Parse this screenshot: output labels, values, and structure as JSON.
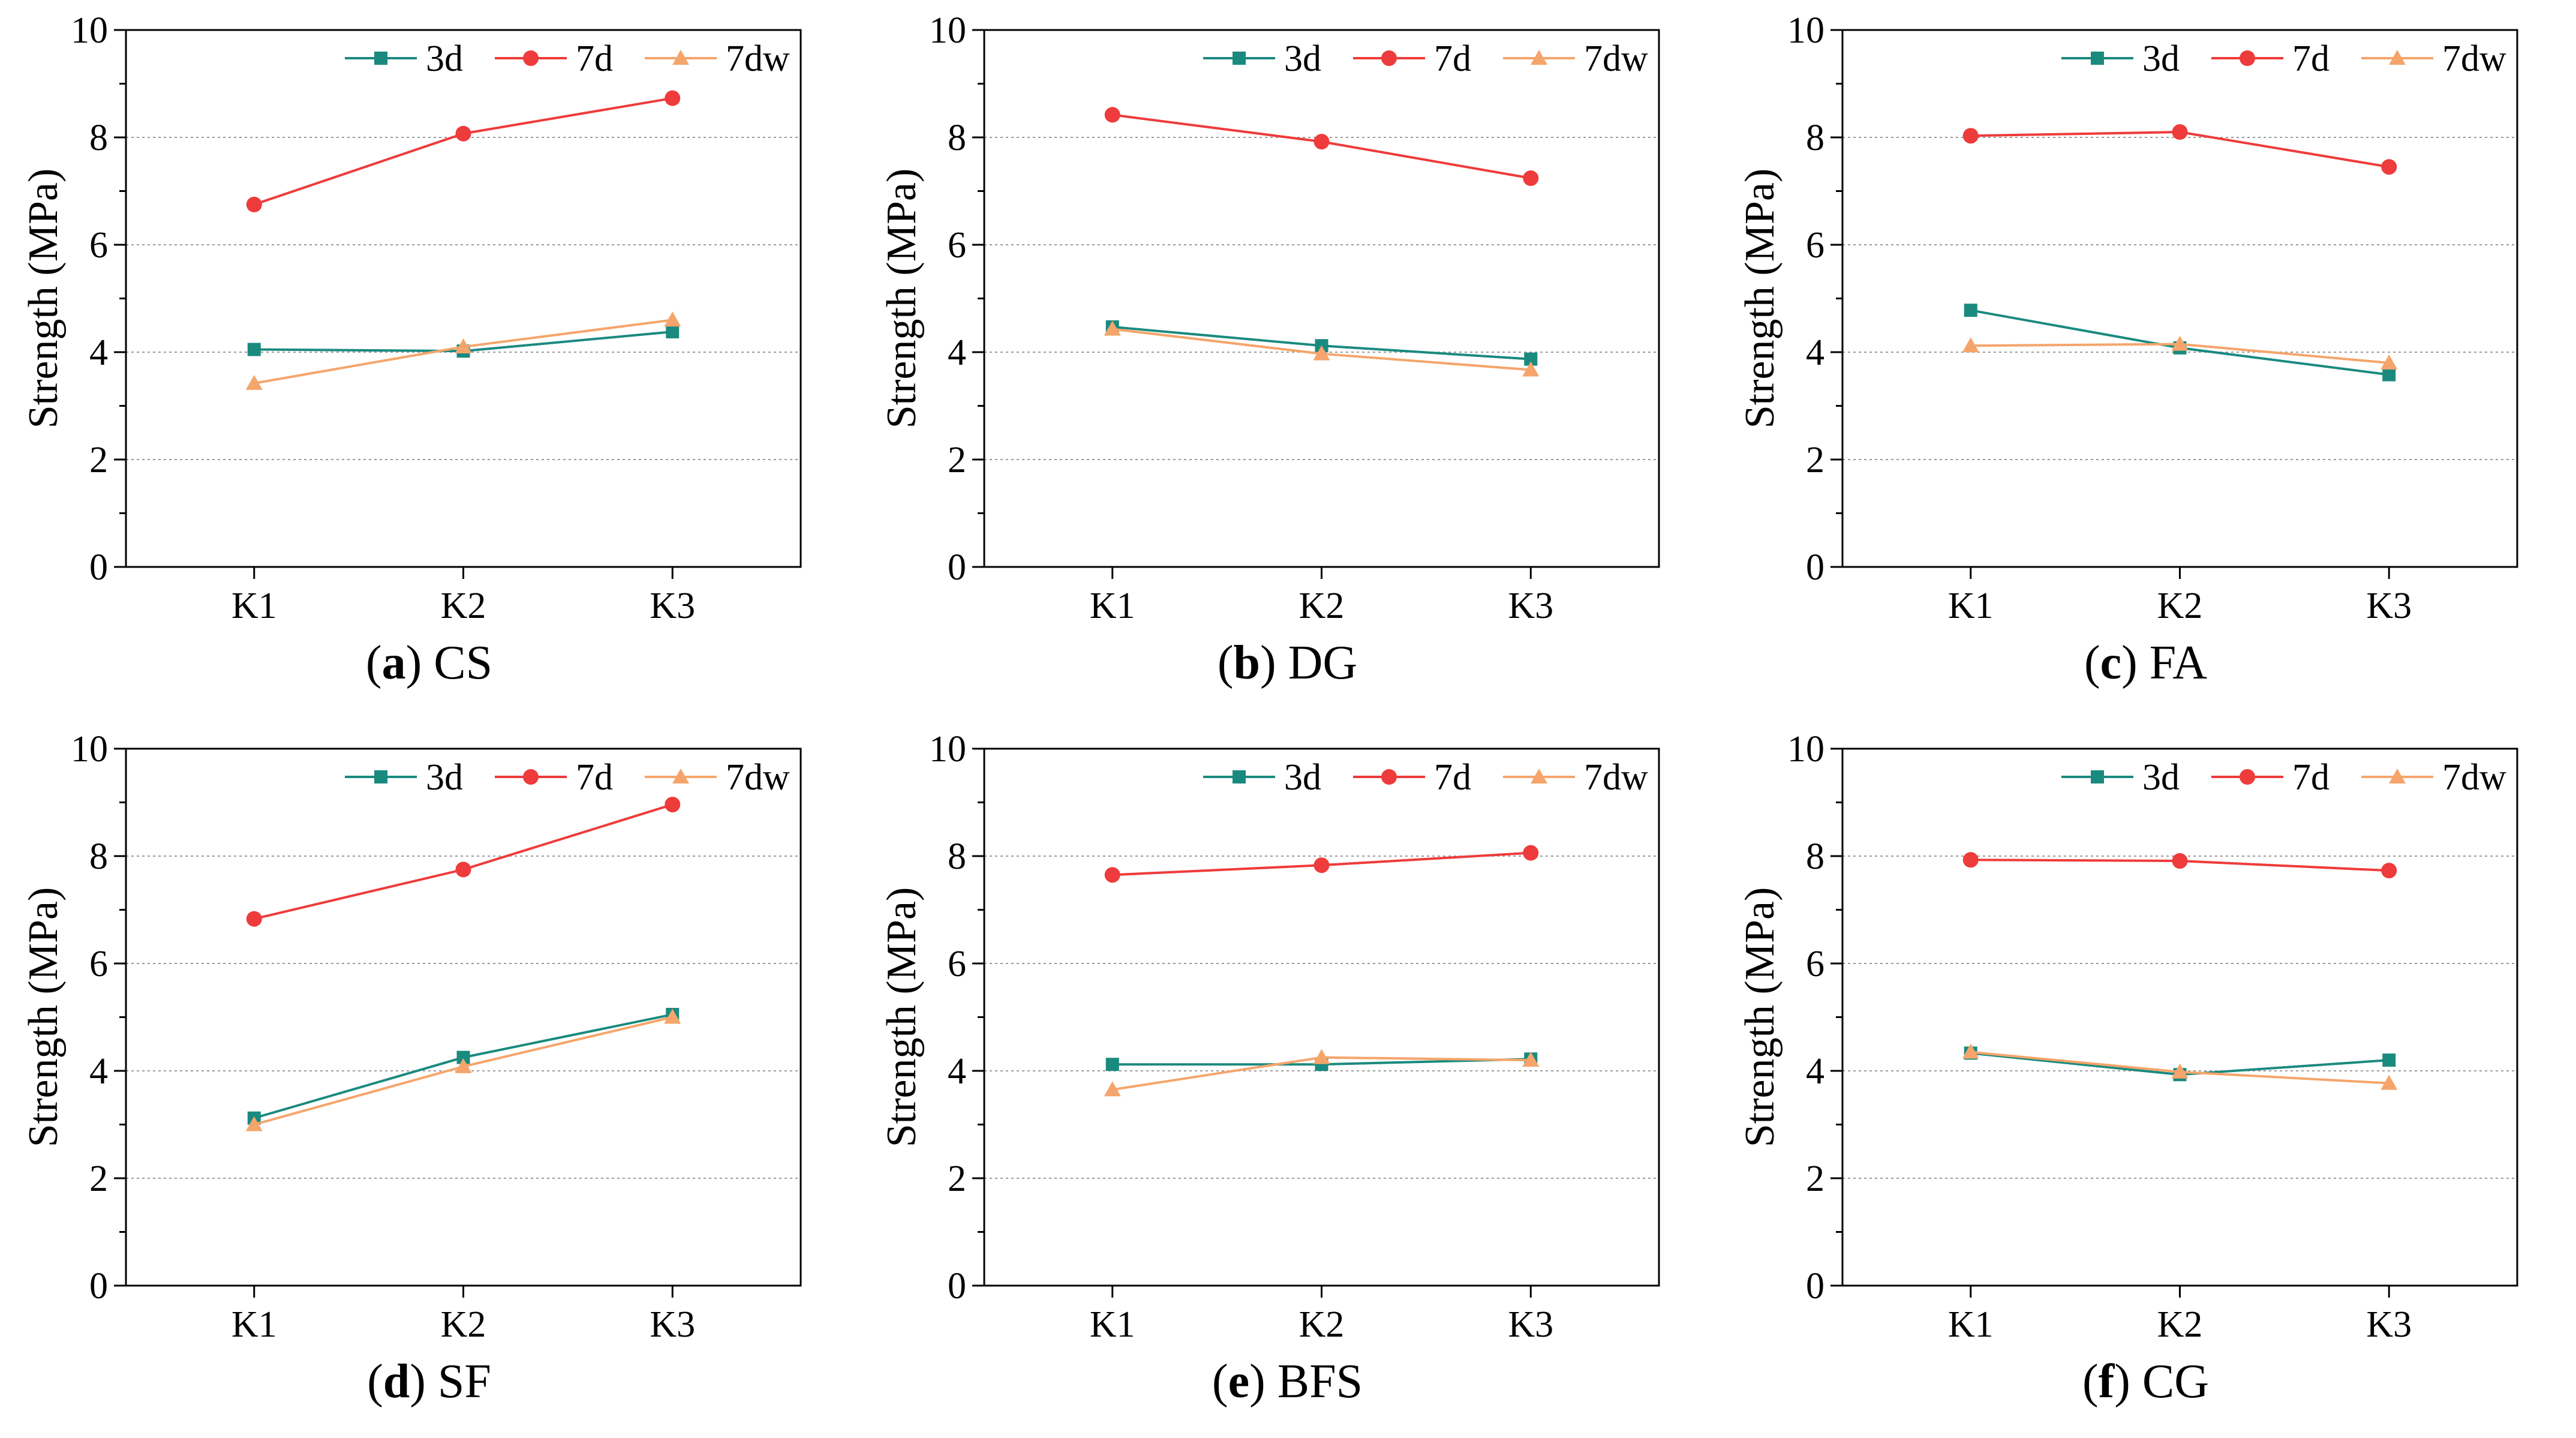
{
  "colors": {
    "3d": "#1a8a7f",
    "7d": "#ee3b3b",
    "7dw": "#f5a56b",
    "grid": "#9a9a9a",
    "axis": "#000000"
  },
  "chart_data": [
    {
      "type": "line",
      "caption_letter": "a",
      "caption_name": "CS",
      "categories": [
        "K1",
        "K2",
        "K3"
      ],
      "ylabel": "Strength (MPa)",
      "xlabel": "",
      "ylim": [
        0,
        10
      ],
      "yticks": [
        "0",
        "2",
        "4",
        "6",
        "8",
        "10"
      ],
      "series": [
        {
          "name": "3d",
          "marker": "square",
          "values": [
            4.05,
            4.02,
            4.38
          ]
        },
        {
          "name": "7d",
          "marker": "circle",
          "values": [
            6.75,
            8.07,
            8.73
          ]
        },
        {
          "name": "7dw",
          "marker": "triangle",
          "values": [
            3.42,
            4.1,
            4.6
          ]
        }
      ]
    },
    {
      "type": "line",
      "caption_letter": "b",
      "caption_name": "DG",
      "categories": [
        "K1",
        "K2",
        "K3"
      ],
      "ylabel": "Strength (MPa)",
      "xlabel": "",
      "ylim": [
        0,
        10
      ],
      "yticks": [
        "0",
        "2",
        "4",
        "6",
        "8",
        "10"
      ],
      "series": [
        {
          "name": "3d",
          "marker": "square",
          "values": [
            4.47,
            4.12,
            3.87
          ]
        },
        {
          "name": "7d",
          "marker": "circle",
          "values": [
            8.42,
            7.92,
            7.24
          ]
        },
        {
          "name": "7dw",
          "marker": "triangle",
          "values": [
            4.43,
            3.97,
            3.67
          ]
        }
      ]
    },
    {
      "type": "line",
      "caption_letter": "c",
      "caption_name": "FA",
      "categories": [
        "K1",
        "K2",
        "K3"
      ],
      "ylabel": "Strength (MPa)",
      "xlabel": "",
      "ylim": [
        0,
        10
      ],
      "yticks": [
        "0",
        "2",
        "4",
        "6",
        "8",
        "10"
      ],
      "series": [
        {
          "name": "3d",
          "marker": "square",
          "values": [
            4.78,
            4.08,
            3.58
          ]
        },
        {
          "name": "7d",
          "marker": "circle",
          "values": [
            8.03,
            8.1,
            7.45
          ]
        },
        {
          "name": "7dw",
          "marker": "triangle",
          "values": [
            4.12,
            4.15,
            3.8
          ]
        }
      ]
    },
    {
      "type": "line",
      "caption_letter": "d",
      "caption_name": "SF",
      "categories": [
        "K1",
        "K2",
        "K3"
      ],
      "ylabel": "Strength (MPa)",
      "xlabel": "",
      "ylim": [
        0,
        10
      ],
      "yticks": [
        "0",
        "2",
        "4",
        "6",
        "8",
        "10"
      ],
      "series": [
        {
          "name": "3d",
          "marker": "square",
          "values": [
            3.12,
            4.25,
            5.05
          ]
        },
        {
          "name": "7d",
          "marker": "circle",
          "values": [
            6.83,
            7.75,
            8.96
          ]
        },
        {
          "name": "7dw",
          "marker": "triangle",
          "values": [
            3.0,
            4.08,
            5.0
          ]
        }
      ]
    },
    {
      "type": "line",
      "caption_letter": "e",
      "caption_name": "BFS",
      "categories": [
        "K1",
        "K2",
        "K3"
      ],
      "ylabel": "Strength (MPa)",
      "xlabel": "",
      "ylim": [
        0,
        10
      ],
      "yticks": [
        "0",
        "2",
        "4",
        "6",
        "8",
        "10"
      ],
      "series": [
        {
          "name": "3d",
          "marker": "square",
          "values": [
            4.12,
            4.12,
            4.22
          ]
        },
        {
          "name": "7d",
          "marker": "circle",
          "values": [
            7.65,
            7.83,
            8.06
          ]
        },
        {
          "name": "7dw",
          "marker": "triangle",
          "values": [
            3.65,
            4.25,
            4.2
          ]
        }
      ]
    },
    {
      "type": "line",
      "caption_letter": "f",
      "caption_name": "CG",
      "categories": [
        "K1",
        "K2",
        "K3"
      ],
      "ylabel": "Strength (MPa)",
      "xlabel": "",
      "ylim": [
        0,
        10
      ],
      "yticks": [
        "0",
        "2",
        "4",
        "6",
        "8",
        "10"
      ],
      "series": [
        {
          "name": "3d",
          "marker": "square",
          "values": [
            4.33,
            3.93,
            4.2
          ]
        },
        {
          "name": "7d",
          "marker": "circle",
          "values": [
            7.93,
            7.91,
            7.73
          ]
        },
        {
          "name": "7dw",
          "marker": "triangle",
          "values": [
            4.35,
            3.98,
            3.77
          ]
        }
      ]
    }
  ]
}
